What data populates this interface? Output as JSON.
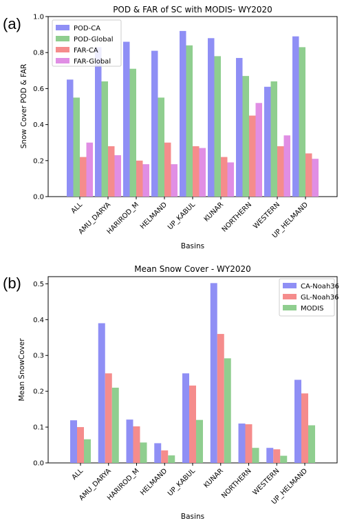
{
  "chart_data": [
    {
      "panel": "(a)",
      "type": "bar",
      "title": "POD & FAR of SC with MODIS- WY2020",
      "xlabel": "Basins",
      "ylabel": "Snow Cover POD & FAR",
      "ylim": [
        0,
        1.0
      ],
      "yticks": [
        "0.0",
        "0.2",
        "0.4",
        "0.6",
        "0.8",
        "1.0"
      ],
      "categories": [
        "ALL",
        "AMU_DARYA",
        "HARIROD_M",
        "HELMAND",
        "UP_KABUL",
        "KUNAR",
        "NORTHERN",
        "WESTERN",
        "UP_HELMAND"
      ],
      "legend_position": "top-left",
      "series": [
        {
          "name": "POD-CA",
          "color": "#8f8ff5",
          "values": [
            0.65,
            0.83,
            0.86,
            0.81,
            0.92,
            0.88,
            0.77,
            0.61,
            0.89
          ]
        },
        {
          "name": "POD-Global",
          "color": "#8fce8f",
          "values": [
            0.55,
            0.64,
            0.71,
            0.55,
            0.84,
            0.78,
            0.67,
            0.64,
            0.83
          ]
        },
        {
          "name": "FAR-CA",
          "color": "#f58c8c",
          "values": [
            0.22,
            0.28,
            0.2,
            0.3,
            0.28,
            0.22,
            0.45,
            0.28,
            0.24
          ]
        },
        {
          "name": "FAR-Global",
          "color": "#e08ee4",
          "values": [
            0.3,
            0.23,
            0.18,
            0.18,
            0.27,
            0.19,
            0.52,
            0.34,
            0.21
          ]
        }
      ]
    },
    {
      "panel": "(b)",
      "type": "bar",
      "title": "Mean Snow Cover - WY2020",
      "xlabel": "Basins",
      "ylabel": "Mean SnowCover",
      "ylim": [
        0,
        0.52
      ],
      "yticks": [
        "0.0",
        "0.1",
        "0.2",
        "0.3",
        "0.4",
        "0.5"
      ],
      "categories": [
        "ALL",
        "AMU_DARYA",
        "HARIROD_M",
        "HELMAND",
        "UP_KABUL",
        "KUNAR",
        "NORTHERN",
        "WESTERN",
        "UP_HELMAND"
      ],
      "legend_position": "top-right",
      "series": [
        {
          "name": "CA-Noah36",
          "color": "#8f8ff5",
          "values": [
            0.119,
            0.39,
            0.121,
            0.055,
            0.25,
            0.502,
            0.11,
            0.042,
            0.232
          ]
        },
        {
          "name": "GL-Noah36",
          "color": "#f58c8c",
          "values": [
            0.1,
            0.25,
            0.102,
            0.035,
            0.216,
            0.36,
            0.108,
            0.038,
            0.194
          ]
        },
        {
          "name": "MODIS",
          "color": "#8fce8f",
          "values": [
            0.066,
            0.21,
            0.057,
            0.021,
            0.12,
            0.292,
            0.042,
            0.02,
            0.105
          ]
        }
      ]
    }
  ]
}
